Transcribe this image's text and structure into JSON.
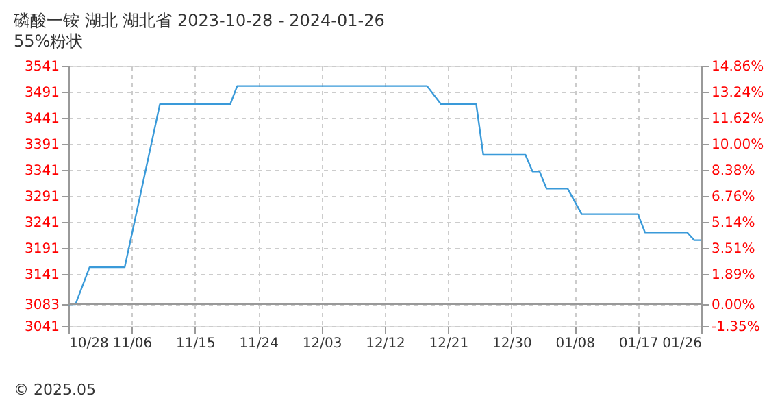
{
  "chart_data": {
    "type": "line",
    "title": "磷酸一铵 湖北 湖北省 2023-10-28 - 2024-01-26",
    "subtitle": "55%粉状",
    "annotations": [
      "© 2025.05"
    ],
    "series": [
      {
        "color": "#3a9ad9",
        "x": [
          "2023-10-28",
          "2023-10-29",
          "2023-10-31",
          "2023-11-05",
          "2023-11-10",
          "2023-11-20",
          "2023-11-21",
          "2023-12-18",
          "2023-12-20",
          "2023-12-25",
          "2023-12-26",
          "2024-01-01",
          "2024-01-02",
          "2024-01-03",
          "2024-01-04",
          "2024-01-07",
          "2024-01-09",
          "2024-01-17",
          "2024-01-18",
          "2024-01-24",
          "2024-01-25",
          "2024-01-26"
        ],
        "values": [
          3083,
          3083,
          3154,
          3154,
          3467,
          3467,
          3502,
          3502,
          3467,
          3467,
          3370,
          3370,
          3338,
          3338,
          3305,
          3305,
          3256,
          3256,
          3221,
          3221,
          3206,
          3206
        ]
      }
    ],
    "xlim": [
      "2023-10-28",
      "2024-01-26"
    ],
    "xticks": [
      {
        "value": "2023-10-28",
        "label": "10/28"
      },
      {
        "value": "2023-11-06",
        "label": "11/06"
      },
      {
        "value": "2023-11-15",
        "label": "11/15"
      },
      {
        "value": "2023-11-24",
        "label": "11/24"
      },
      {
        "value": "2023-12-03",
        "label": "12/03"
      },
      {
        "value": "2023-12-12",
        "label": "12/12"
      },
      {
        "value": "2023-12-21",
        "label": "12/21"
      },
      {
        "value": "2023-12-30",
        "label": "12/30"
      },
      {
        "value": "2024-01-08",
        "label": "01/08"
      },
      {
        "value": "2024-01-17",
        "label": "01/17"
      },
      {
        "value": "2024-01-26",
        "label": "01/26"
      }
    ],
    "ylim": [
      3041,
      3541
    ],
    "yticks": [
      3041,
      3083,
      3141,
      3191,
      3241,
      3291,
      3341,
      3391,
      3441,
      3491,
      3541
    ],
    "y2lim": [
      -1.35,
      14.86
    ],
    "y2ticks": [
      {
        "value": -1.35,
        "label": "-1.35%"
      },
      {
        "value": 0,
        "label": "0.00%"
      },
      {
        "value": 1.89,
        "label": "1.89%"
      },
      {
        "value": 3.51,
        "label": "3.51%"
      },
      {
        "value": 5.14,
        "label": "5.14%"
      },
      {
        "value": 6.76,
        "label": "6.76%"
      },
      {
        "value": 8.38,
        "label": "8.38%"
      },
      {
        "value": 10.0,
        "label": "10.00%"
      },
      {
        "value": 11.62,
        "label": "11.62%"
      },
      {
        "value": 13.24,
        "label": "13.24%"
      },
      {
        "value": 14.86,
        "label": "14.86%"
      }
    ],
    "ref_lines": [
      {
        "axis": "y",
        "value": 3083,
        "color": "#999999",
        "line_style": "solid"
      }
    ],
    "grid": true,
    "marker": "none",
    "line_style": "solid"
  }
}
